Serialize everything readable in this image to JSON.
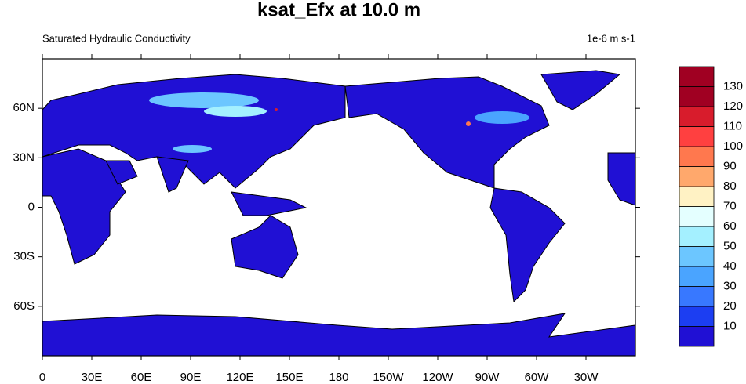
{
  "chart_data": {
    "type": "map",
    "title": "ksat_Efx at 10.0 m",
    "subtitle": "Saturated Hydraulic Conductivity",
    "units": "1e-6 m s-1",
    "xlim": [
      0,
      360
    ],
    "ylim": [
      -90,
      90
    ],
    "xticks": [
      0,
      {
        "value": 30,
        "label": "30E"
      },
      {
        "value": 60,
        "label": "60E"
      },
      {
        "value": 90,
        "label": "90E"
      },
      {
        "value": 120,
        "label": "120E"
      },
      {
        "value": 150,
        "label": "150E"
      },
      180,
      {
        "value": 210,
        "label": "150W"
      },
      {
        "value": 240,
        "label": "120W"
      },
      {
        "value": 270,
        "label": "90W"
      },
      {
        "value": 300,
        "label": "60W"
      },
      {
        "value": 330,
        "label": "30W"
      }
    ],
    "yticks": [
      {
        "value": -60,
        "label": "60S"
      },
      {
        "value": -30,
        "label": "30S"
      },
      0,
      {
        "value": 30,
        "label": "30N"
      },
      {
        "value": 60,
        "label": "60N"
      }
    ],
    "colorbar": {
      "levels": [
        10,
        20,
        30,
        40,
        50,
        60,
        70,
        80,
        90,
        100,
        110,
        120,
        130
      ],
      "colors": [
        "#2010d4",
        "#1c3ef2",
        "#3878ff",
        "#4aa4ff",
        "#6cc6ff",
        "#a4f0ff",
        "#e4ffff",
        "#fff2c4",
        "#ffa86c",
        "#ff784e",
        "#ff4040",
        "#d81c2c",
        "#a00022",
        "#a00022"
      ]
    }
  }
}
